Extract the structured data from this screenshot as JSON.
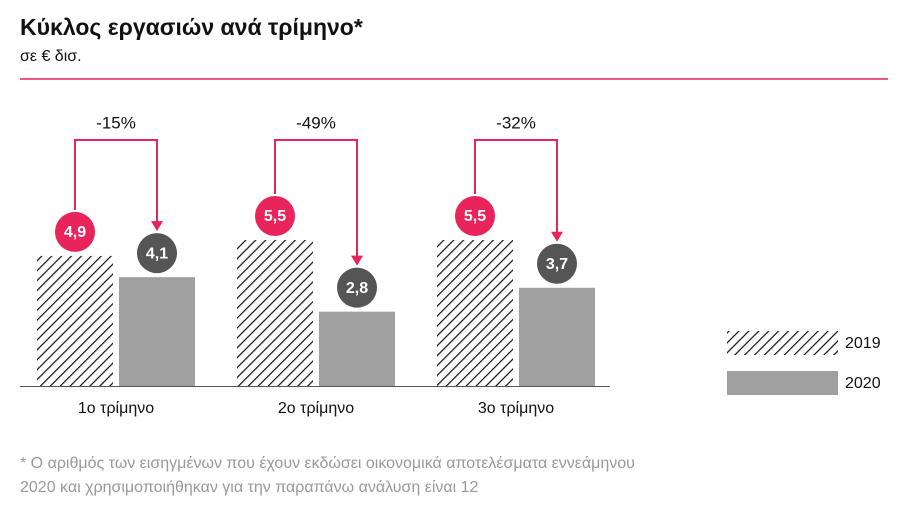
{
  "chart_data": {
    "type": "bar",
    "title": "Κύκλος εργασιών ανά τρίμηνο*",
    "subtitle": "σε € δισ.",
    "categories": [
      "1ο τρίμηνο",
      "2ο τρίμηνο",
      "3ο τρίμηνο"
    ],
    "series": [
      {
        "name": "2019",
        "color": "#e8245a",
        "values": [
          4.9,
          5.5,
          5.5
        ],
        "value_labels": [
          "4,9",
          "5,5",
          "5,5"
        ]
      },
      {
        "name": "2020",
        "color": "#a0a0a0",
        "values": [
          4.1,
          2.8,
          3.7
        ],
        "value_labels": [
          "4,1",
          "2,8",
          "3,7"
        ]
      }
    ],
    "changes": [
      -15,
      -49,
      -32
    ],
    "change_labels": [
      "-15%",
      "-49%",
      "-32%"
    ],
    "legend": "right",
    "footnote": [
      "* Ο αριθμός των εισηγμένων που έχουν εκδώσει οικονομικά αποτελέσματα εννεάμηνου",
      "2020 και χρησιμοποιήθηκαν για την παραπάνω ανάλυση είναι 12"
    ]
  }
}
